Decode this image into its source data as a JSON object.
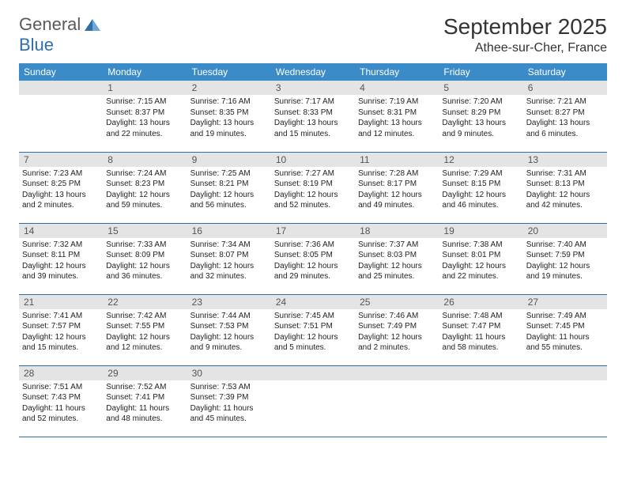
{
  "logo": {
    "part1": "General",
    "part2": "Blue"
  },
  "title": "September 2025",
  "location": "Athee-sur-Cher, France",
  "colors": {
    "header_bg": "#3b8bc8",
    "header_text": "#ffffff",
    "daynum_bg": "#e4e4e4",
    "daynum_text": "#555555",
    "row_border": "#2f6fa8",
    "body_text": "#222222",
    "logo_gray": "#5a5a5a",
    "logo_blue": "#2f6fa8",
    "page_bg": "#ffffff"
  },
  "fonts": {
    "title_size_pt": 21,
    "location_size_pt": 12,
    "weekday_size_pt": 9,
    "daynum_size_pt": 9,
    "body_size_pt": 7.5
  },
  "weekdays": [
    "Sunday",
    "Monday",
    "Tuesday",
    "Wednesday",
    "Thursday",
    "Friday",
    "Saturday"
  ],
  "weeks": [
    [
      null,
      {
        "n": "1",
        "sr": "7:15 AM",
        "ss": "8:37 PM",
        "dl": "13 hours and 22 minutes."
      },
      {
        "n": "2",
        "sr": "7:16 AM",
        "ss": "8:35 PM",
        "dl": "13 hours and 19 minutes."
      },
      {
        "n": "3",
        "sr": "7:17 AM",
        "ss": "8:33 PM",
        "dl": "13 hours and 15 minutes."
      },
      {
        "n": "4",
        "sr": "7:19 AM",
        "ss": "8:31 PM",
        "dl": "13 hours and 12 minutes."
      },
      {
        "n": "5",
        "sr": "7:20 AM",
        "ss": "8:29 PM",
        "dl": "13 hours and 9 minutes."
      },
      {
        "n": "6",
        "sr": "7:21 AM",
        "ss": "8:27 PM",
        "dl": "13 hours and 6 minutes."
      }
    ],
    [
      {
        "n": "7",
        "sr": "7:23 AM",
        "ss": "8:25 PM",
        "dl": "13 hours and 2 minutes."
      },
      {
        "n": "8",
        "sr": "7:24 AM",
        "ss": "8:23 PM",
        "dl": "12 hours and 59 minutes."
      },
      {
        "n": "9",
        "sr": "7:25 AM",
        "ss": "8:21 PM",
        "dl": "12 hours and 56 minutes."
      },
      {
        "n": "10",
        "sr": "7:27 AM",
        "ss": "8:19 PM",
        "dl": "12 hours and 52 minutes."
      },
      {
        "n": "11",
        "sr": "7:28 AM",
        "ss": "8:17 PM",
        "dl": "12 hours and 49 minutes."
      },
      {
        "n": "12",
        "sr": "7:29 AM",
        "ss": "8:15 PM",
        "dl": "12 hours and 46 minutes."
      },
      {
        "n": "13",
        "sr": "7:31 AM",
        "ss": "8:13 PM",
        "dl": "12 hours and 42 minutes."
      }
    ],
    [
      {
        "n": "14",
        "sr": "7:32 AM",
        "ss": "8:11 PM",
        "dl": "12 hours and 39 minutes."
      },
      {
        "n": "15",
        "sr": "7:33 AM",
        "ss": "8:09 PM",
        "dl": "12 hours and 36 minutes."
      },
      {
        "n": "16",
        "sr": "7:34 AM",
        "ss": "8:07 PM",
        "dl": "12 hours and 32 minutes."
      },
      {
        "n": "17",
        "sr": "7:36 AM",
        "ss": "8:05 PM",
        "dl": "12 hours and 29 minutes."
      },
      {
        "n": "18",
        "sr": "7:37 AM",
        "ss": "8:03 PM",
        "dl": "12 hours and 25 minutes."
      },
      {
        "n": "19",
        "sr": "7:38 AM",
        "ss": "8:01 PM",
        "dl": "12 hours and 22 minutes."
      },
      {
        "n": "20",
        "sr": "7:40 AM",
        "ss": "7:59 PM",
        "dl": "12 hours and 19 minutes."
      }
    ],
    [
      {
        "n": "21",
        "sr": "7:41 AM",
        "ss": "7:57 PM",
        "dl": "12 hours and 15 minutes."
      },
      {
        "n": "22",
        "sr": "7:42 AM",
        "ss": "7:55 PM",
        "dl": "12 hours and 12 minutes."
      },
      {
        "n": "23",
        "sr": "7:44 AM",
        "ss": "7:53 PM",
        "dl": "12 hours and 9 minutes."
      },
      {
        "n": "24",
        "sr": "7:45 AM",
        "ss": "7:51 PM",
        "dl": "12 hours and 5 minutes."
      },
      {
        "n": "25",
        "sr": "7:46 AM",
        "ss": "7:49 PM",
        "dl": "12 hours and 2 minutes."
      },
      {
        "n": "26",
        "sr": "7:48 AM",
        "ss": "7:47 PM",
        "dl": "11 hours and 58 minutes."
      },
      {
        "n": "27",
        "sr": "7:49 AM",
        "ss": "7:45 PM",
        "dl": "11 hours and 55 minutes."
      }
    ],
    [
      {
        "n": "28",
        "sr": "7:51 AM",
        "ss": "7:43 PM",
        "dl": "11 hours and 52 minutes."
      },
      {
        "n": "29",
        "sr": "7:52 AM",
        "ss": "7:41 PM",
        "dl": "11 hours and 48 minutes."
      },
      {
        "n": "30",
        "sr": "7:53 AM",
        "ss": "7:39 PM",
        "dl": "11 hours and 45 minutes."
      },
      null,
      null,
      null,
      null
    ]
  ],
  "labels": {
    "sunrise": "Sunrise:",
    "sunset": "Sunset:",
    "daylight": "Daylight:"
  }
}
